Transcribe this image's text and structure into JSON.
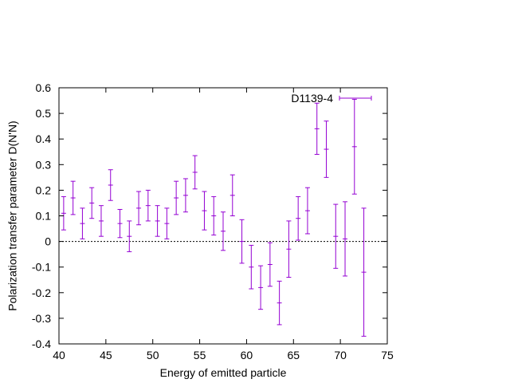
{
  "chart_data": {
    "type": "scatter",
    "title": "",
    "xlabel": "Energy of emitted particle",
    "ylabel": "Polarization transfer parameter D(N'N)",
    "xlim": [
      40,
      75
    ],
    "ylim": [
      -0.4,
      0.6
    ],
    "x_ticks": [
      "40",
      "45",
      "50",
      "55",
      "60",
      "65",
      "70",
      "75"
    ],
    "y_ticks": [
      "-0.4",
      "-0.3",
      "-0.2",
      "-0.1",
      "0",
      "0.1",
      "0.2",
      "0.3",
      "0.4",
      "0.5",
      "0.6"
    ],
    "zero_line": true,
    "grid": false,
    "legend_position": "top-right",
    "series": [
      {
        "name": "D1139-4",
        "color": "#9400d3",
        "marker": "errorbar",
        "points": [
          {
            "x": 40.5,
            "y": 0.11,
            "yerr": 0.065
          },
          {
            "x": 41.5,
            "y": 0.17,
            "yerr": 0.065
          },
          {
            "x": 42.5,
            "y": 0.07,
            "yerr": 0.06
          },
          {
            "x": 43.5,
            "y": 0.15,
            "yerr": 0.06
          },
          {
            "x": 44.5,
            "y": 0.08,
            "yerr": 0.06
          },
          {
            "x": 45.5,
            "y": 0.22,
            "yerr": 0.06
          },
          {
            "x": 46.5,
            "y": 0.07,
            "yerr": 0.055
          },
          {
            "x": 47.5,
            "y": 0.02,
            "yerr": 0.06
          },
          {
            "x": 48.5,
            "y": 0.13,
            "yerr": 0.065
          },
          {
            "x": 49.5,
            "y": 0.14,
            "yerr": 0.06
          },
          {
            "x": 50.5,
            "y": 0.08,
            "yerr": 0.06
          },
          {
            "x": 51.5,
            "y": 0.07,
            "yerr": 0.06
          },
          {
            "x": 52.5,
            "y": 0.17,
            "yerr": 0.065
          },
          {
            "x": 53.5,
            "y": 0.18,
            "yerr": 0.065
          },
          {
            "x": 54.5,
            "y": 0.27,
            "yerr": 0.065
          },
          {
            "x": 55.5,
            "y": 0.12,
            "yerr": 0.075
          },
          {
            "x": 56.5,
            "y": 0.1,
            "yerr": 0.075
          },
          {
            "x": 57.5,
            "y": 0.04,
            "yerr": 0.075
          },
          {
            "x": 58.5,
            "y": 0.18,
            "yerr": 0.08
          },
          {
            "x": 59.5,
            "y": 0.0,
            "yerr": 0.085
          },
          {
            "x": 60.5,
            "y": -0.1,
            "yerr": 0.085
          },
          {
            "x": 61.5,
            "y": -0.18,
            "yerr": 0.085
          },
          {
            "x": 62.5,
            "y": -0.09,
            "yerr": 0.085
          },
          {
            "x": 63.5,
            "y": -0.24,
            "yerr": 0.085
          },
          {
            "x": 64.5,
            "y": -0.03,
            "yerr": 0.11
          },
          {
            "x": 65.5,
            "y": 0.09,
            "yerr": 0.085
          },
          {
            "x": 66.5,
            "y": 0.12,
            "yerr": 0.09
          },
          {
            "x": 67.5,
            "y": 0.44,
            "yerr": 0.1
          },
          {
            "x": 68.5,
            "y": 0.36,
            "yerr": 0.11
          },
          {
            "x": 69.5,
            "y": 0.02,
            "yerr": 0.125
          },
          {
            "x": 70.5,
            "y": 0.01,
            "yerr": 0.145
          },
          {
            "x": 71.5,
            "y": 0.37,
            "yerr": 0.185
          },
          {
            "x": 72.5,
            "y": -0.12,
            "yerr": 0.25
          }
        ]
      }
    ]
  }
}
